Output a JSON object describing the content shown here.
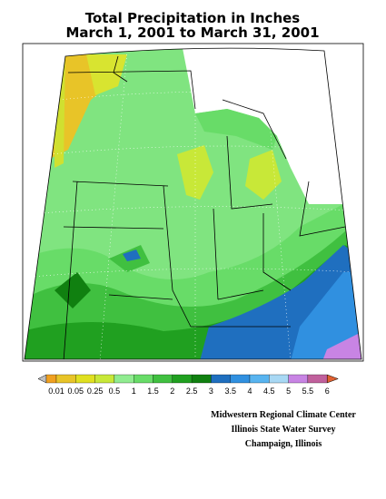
{
  "title": [
    "Total Precipitation in Inches",
    "March 1, 2001 to March 31, 2001"
  ],
  "legend": {
    "labels": [
      "0.01",
      "0.05",
      "0.25",
      "0.5",
      "1",
      "1.5",
      "2",
      "2.5",
      "3",
      "3.5",
      "4",
      "4.5",
      "5",
      "5.5",
      "6"
    ],
    "colors": [
      "#f0a020",
      "#e8c428",
      "#e0e020",
      "#c8e838",
      "#90ec90",
      "#68dc68",
      "#40c040",
      "#20a020",
      "#108010",
      "#1f6fbf",
      "#3090e0",
      "#58b4f0",
      "#a8d8f4",
      "#c884e4",
      "#c0609c"
    ],
    "arrow_colors": [
      "#c0c0c0",
      "#e06030"
    ]
  },
  "credits": [
    "Midwestern Regional Climate Center",
    "Illinois State Water Survey",
    "Champaign, Illinois"
  ]
}
